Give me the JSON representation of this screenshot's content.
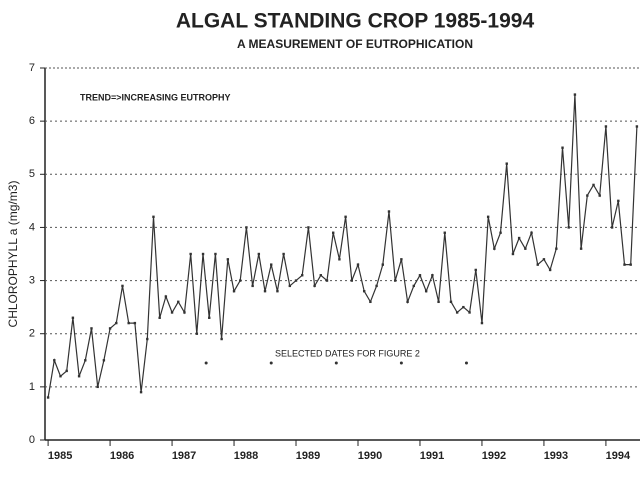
{
  "chart_data": {
    "type": "line",
    "title": "ALGAL STANDING CROP 1985-1994",
    "subtitle": "A MEASUREMENT OF EUTROPHICATION",
    "y_label": "CHLOROPHYLL a (mg/m3)",
    "annotation": "TREND=>INCREASING EUTROPHY",
    "marker_label": "SELECTED DATES FOR FIGURE 2",
    "x": [
      1985.0,
      1985.1,
      1985.2,
      1985.3,
      1985.4,
      1985.5,
      1985.6,
      1985.7,
      1985.8,
      1985.9,
      1986.0,
      1986.1,
      1986.2,
      1986.3,
      1986.4,
      1986.5,
      1986.6,
      1986.7,
      1986.8,
      1986.9,
      1987.0,
      1987.1,
      1987.2,
      1987.3,
      1987.4,
      1987.5,
      1987.6,
      1987.7,
      1987.8,
      1987.9,
      1988.0,
      1988.1,
      1988.2,
      1988.3,
      1988.4,
      1988.5,
      1988.6,
      1988.7,
      1988.8,
      1988.9,
      1989.0,
      1989.1,
      1989.2,
      1989.3,
      1989.4,
      1989.5,
      1989.6,
      1989.7,
      1989.8,
      1989.9,
      1990.0,
      1990.1,
      1990.2,
      1990.3,
      1990.4,
      1990.5,
      1990.6,
      1990.7,
      1990.8,
      1990.9,
      1991.0,
      1991.1,
      1991.2,
      1991.3,
      1991.4,
      1991.5,
      1991.6,
      1991.7,
      1991.8,
      1991.9,
      1992.0,
      1992.1,
      1992.2,
      1992.3,
      1992.4,
      1992.5,
      1992.6,
      1992.7,
      1992.8,
      1992.9,
      1993.0,
      1993.1,
      1993.2,
      1993.3,
      1993.4,
      1993.5,
      1993.6,
      1993.7,
      1993.8,
      1993.9,
      1994.0,
      1994.1,
      1994.2,
      1994.3,
      1994.4,
      1994.5
    ],
    "series": [
      {
        "color": "#333333",
        "values": [
          0.8,
          1.5,
          1.2,
          1.3,
          2.3,
          1.2,
          1.5,
          2.1,
          1.0,
          1.5,
          2.1,
          2.2,
          2.9,
          2.2,
          2.2,
          0.9,
          1.9,
          4.2,
          2.3,
          2.7,
          2.4,
          2.6,
          2.4,
          3.5,
          2.0,
          3.5,
          2.3,
          3.5,
          1.9,
          3.4,
          2.8,
          3.0,
          4.0,
          2.9,
          3.5,
          2.8,
          3.3,
          2.8,
          3.5,
          2.9,
          3.0,
          3.1,
          4.0,
          2.9,
          3.1,
          3.0,
          3.9,
          3.4,
          4.2,
          3.0,
          3.3,
          2.8,
          2.6,
          2.9,
          3.3,
          4.3,
          3.0,
          3.4,
          2.6,
          2.9,
          3.1,
          2.8,
          3.1,
          2.6,
          3.9,
          2.6,
          2.4,
          2.5,
          2.4,
          3.2,
          2.2,
          4.2,
          3.6,
          3.9,
          5.2,
          3.5,
          3.8,
          3.6,
          3.9,
          3.3,
          3.4,
          3.2,
          3.6,
          5.5,
          4.0,
          6.5,
          3.6,
          4.6,
          4.8,
          4.6,
          5.9,
          4.0,
          4.5,
          3.3,
          3.3,
          5.9
        ]
      }
    ],
    "markers": {
      "color": "#333333",
      "x": [
        1987.55,
        1988.6,
        1989.65,
        1990.7,
        1991.75
      ],
      "values": [
        1.45,
        1.45,
        1.45,
        1.45,
        1.45
      ]
    },
    "xlim": [
      1984.95,
      1994.55
    ],
    "xticks": [
      1985,
      1986,
      1987,
      1988,
      1989,
      1990,
      1991,
      1992,
      1993,
      1994
    ],
    "ylim": [
      0,
      7
    ],
    "yticks": [
      0,
      1,
      2,
      3,
      4,
      5,
      6,
      7
    ],
    "grid": true
  }
}
